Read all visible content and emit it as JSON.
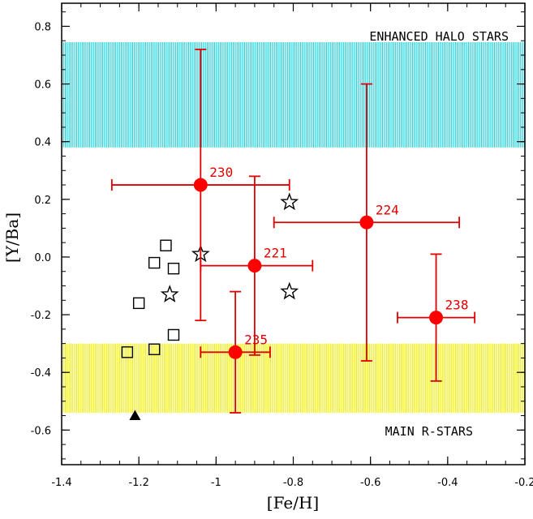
{
  "chart_data": {
    "type": "scatter",
    "xlabel": "[Fe/H]",
    "ylabel": "[Y/Ba]",
    "xlim": [
      -1.4,
      -0.2
    ],
    "ylim": [
      -0.72,
      0.88
    ],
    "x_ticks": [
      {
        "value": -1.4,
        "label": "-1.4"
      },
      {
        "value": -1.2,
        "label": "-1.2"
      },
      {
        "value": -1.0,
        "label": "-1"
      },
      {
        "value": -0.8,
        "label": "-0.8"
      },
      {
        "value": -0.6,
        "label": "-0.6"
      },
      {
        "value": -0.4,
        "label": "-0.4"
      },
      {
        "value": -0.2,
        "label": "-0.2"
      }
    ],
    "y_ticks": [
      {
        "value": 0.8,
        "label": "0.8"
      },
      {
        "value": 0.6,
        "label": "0.6"
      },
      {
        "value": 0.4,
        "label": "0.4"
      },
      {
        "value": 0.2,
        "label": "0.2"
      },
      {
        "value": 0.0,
        "label": "0.0"
      },
      {
        "value": -0.2,
        "label": "-0.2"
      },
      {
        "value": -0.4,
        "label": "-0.4"
      },
      {
        "value": -0.6,
        "label": "-0.6"
      }
    ],
    "bands": [
      {
        "name": "ENHANCED HALO STARS",
        "y_min": 0.38,
        "y_max": 0.745,
        "color": "#22d3dc"
      },
      {
        "name": "MAIN R-STARS",
        "y_min": -0.54,
        "y_max": -0.3,
        "color": "#f0f000"
      }
    ],
    "red_points": [
      {
        "label": "230",
        "x": -1.04,
        "y": 0.25,
        "x_lo": -1.27,
        "x_hi": -0.81,
        "y_lo": -0.22,
        "y_hi": 0.72
      },
      {
        "label": "221",
        "x": -0.9,
        "y": -0.03,
        "x_lo": -1.04,
        "x_hi": -0.75,
        "y_lo": -0.34,
        "y_hi": 0.28
      },
      {
        "label": "224",
        "x": -0.61,
        "y": 0.12,
        "x_lo": -0.85,
        "x_hi": -0.37,
        "y_lo": -0.36,
        "y_hi": 0.6
      },
      {
        "label": "238",
        "x": -0.43,
        "y": -0.21,
        "x_lo": -0.53,
        "x_hi": -0.33,
        "y_lo": -0.43,
        "y_hi": 0.01
      },
      {
        "label": "235",
        "x": -0.95,
        "y": -0.33,
        "x_lo": -1.04,
        "x_hi": -0.86,
        "y_lo": -0.54,
        "y_hi": -0.12
      }
    ],
    "squares": [
      {
        "x": -1.13,
        "y": 0.04
      },
      {
        "x": -1.16,
        "y": -0.02
      },
      {
        "x": -1.11,
        "y": -0.04
      },
      {
        "x": -1.2,
        "y": -0.16
      },
      {
        "x": -1.11,
        "y": -0.27
      },
      {
        "x": -1.16,
        "y": -0.32
      },
      {
        "x": -1.23,
        "y": -0.33
      }
    ],
    "stars": [
      {
        "x": -1.04,
        "y": 0.01
      },
      {
        "x": -1.12,
        "y": -0.13
      },
      {
        "x": -0.81,
        "y": 0.19
      },
      {
        "x": -0.81,
        "y": -0.12
      }
    ],
    "triangles": [
      {
        "x": -1.21,
        "y": -0.55
      }
    ],
    "colors": {
      "error_bars": "#e00000",
      "red_points": "#ff0000"
    }
  }
}
